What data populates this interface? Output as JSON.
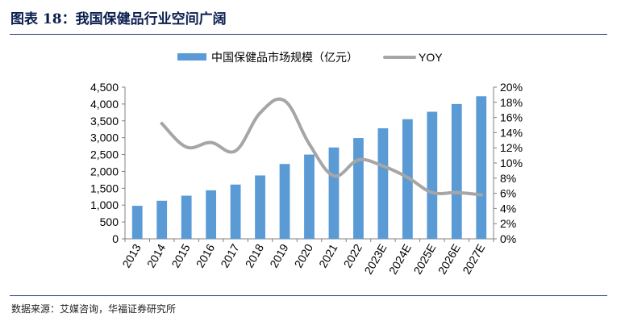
{
  "figure": {
    "title": "图表 18：我国保健品行业空间广阔",
    "source": "数据来源：艾媒咨询，华福证券研究所"
  },
  "chart_data": {
    "type": "bar",
    "categories": [
      "2013",
      "2014",
      "2015",
      "2016",
      "2017",
      "2018",
      "2019",
      "2020",
      "2021",
      "2022",
      "2023E",
      "2024E",
      "2025E",
      "2026E",
      "2027E"
    ],
    "series": [
      {
        "name": "中国保健品市场规模（亿元）",
        "type": "bar",
        "axis": "left",
        "color": "#5b9bd5",
        "values": [
          980,
          1130,
          1280,
          1440,
          1610,
          1880,
          2220,
          2500,
          2710,
          2990,
          3280,
          3550,
          3770,
          4000,
          4230
        ]
      },
      {
        "name": "YOY",
        "type": "line",
        "axis": "right",
        "color": "#a6a6a6",
        "values": [
          null,
          15.2,
          12.1,
          12.7,
          11.6,
          16.6,
          18.2,
          12.5,
          8.3,
          10.4,
          9.6,
          8.1,
          6.1,
          6.1,
          5.8
        ]
      }
    ],
    "y_left": {
      "min": 0,
      "max": 4500,
      "step": 500,
      "tick_labels": [
        "0",
        "500",
        "1,000",
        "1,500",
        "2,000",
        "2,500",
        "3,000",
        "3,500",
        "4,000",
        "4,500"
      ]
    },
    "y_right": {
      "min": 0,
      "max": 20,
      "step": 2,
      "tick_labels": [
        "0%",
        "2%",
        "4%",
        "6%",
        "8%",
        "10%",
        "12%",
        "14%",
        "16%",
        "18%",
        "20%"
      ]
    },
    "legend_position": "top-center",
    "grid": false
  }
}
